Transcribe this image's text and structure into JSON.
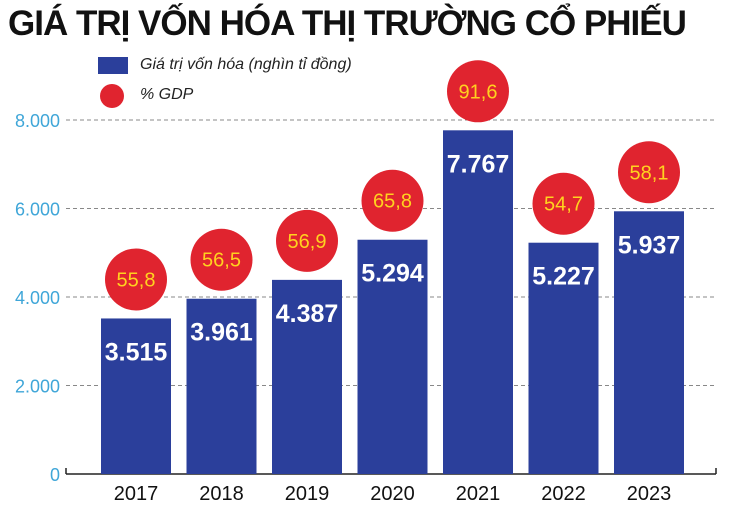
{
  "chart_data": {
    "type": "bar",
    "title": "GIÁ TRỊ VỐN HÓA THỊ TRƯỜNG CỔ PHIẾU",
    "categories": [
      "2017",
      "2018",
      "2019",
      "2020",
      "2021",
      "2022",
      "2023"
    ],
    "series": [
      {
        "name": "Giá trị vốn hóa (nghìn tỉ đồng)",
        "values": [
          3515,
          3961,
          4387,
          5294,
          7767,
          5227,
          5937
        ],
        "labels": [
          "3.515",
          "3.961",
          "4.387",
          "5.294",
          "7.767",
          "5.227",
          "5.937"
        ]
      },
      {
        "name": "% GDP",
        "values": [
          55.8,
          56.5,
          56.9,
          65.8,
          91.6,
          54.7,
          58.1
        ],
        "labels": [
          "55,8",
          "56,5",
          "56,9",
          "65,8",
          "91,6",
          "54,7",
          "58,1"
        ]
      }
    ],
    "yticks": [
      0,
      2000,
      4000,
      6000,
      8000
    ],
    "ytick_labels": [
      "0",
      "2.000",
      "4.000",
      "6.000",
      "8.000"
    ],
    "ylim": [
      0,
      8000
    ],
    "grid": true,
    "legend_position": "top-left",
    "colors": {
      "bar": "#2b3f9b",
      "circle": "#e0242f",
      "bar_label": "#ffffff",
      "circle_label": "#ffd21f",
      "tick_label": "#3fa6d8",
      "grid": "#888888"
    }
  }
}
